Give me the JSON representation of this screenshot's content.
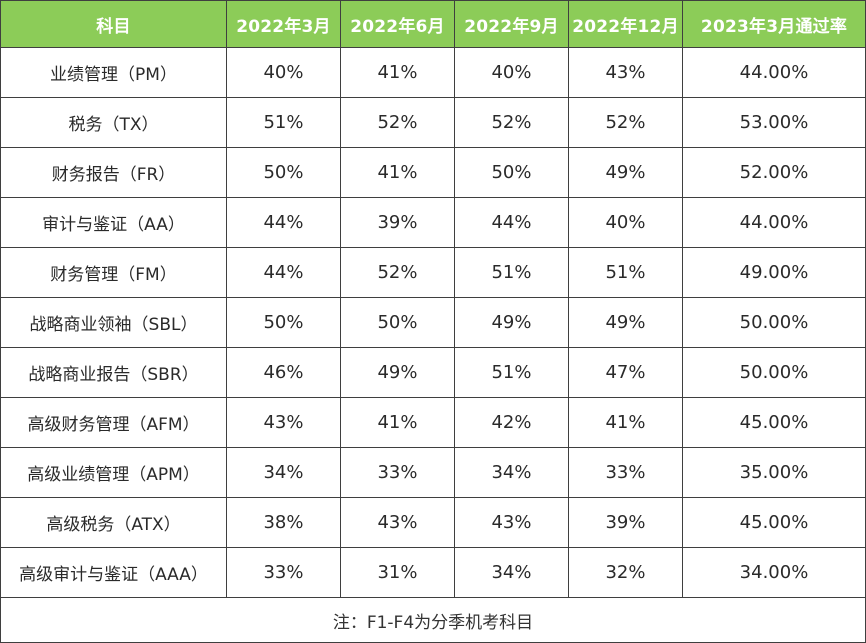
{
  "chart_data": {
    "type": "table",
    "columns": [
      "科目",
      "2022年3月",
      "2022年6月",
      "2022年9月",
      "2022年12月",
      "2023年3月通过率"
    ],
    "rows": [
      {
        "subject": "业绩管理（PM）",
        "values": [
          "40%",
          "41%",
          "40%",
          "43%",
          "44.00%"
        ]
      },
      {
        "subject": "税务（TX）",
        "values": [
          "51%",
          "52%",
          "52%",
          "52%",
          "53.00%"
        ]
      },
      {
        "subject": "财务报告（FR）",
        "values": [
          "50%",
          "41%",
          "50%",
          "49%",
          "52.00%"
        ]
      },
      {
        "subject": "审计与鉴证（AA）",
        "values": [
          "44%",
          "39%",
          "44%",
          "40%",
          "44.00%"
        ]
      },
      {
        "subject": "财务管理（FM）",
        "values": [
          "44%",
          "52%",
          "51%",
          "51%",
          "49.00%"
        ]
      },
      {
        "subject": "战略商业领袖（SBL）",
        "values": [
          "50%",
          "50%",
          "49%",
          "49%",
          "50.00%"
        ]
      },
      {
        "subject": "战略商业报告（SBR）",
        "values": [
          "46%",
          "49%",
          "51%",
          "47%",
          "50.00%"
        ]
      },
      {
        "subject": "高级财务管理（AFM）",
        "values": [
          "43%",
          "41%",
          "42%",
          "41%",
          "45.00%"
        ]
      },
      {
        "subject": "高级业绩管理（APM）",
        "values": [
          "34%",
          "33%",
          "34%",
          "33%",
          "35.00%"
        ]
      },
      {
        "subject": "高级税务（ATX）",
        "values": [
          "38%",
          "43%",
          "43%",
          "39%",
          "45.00%"
        ]
      },
      {
        "subject": "高级审计与鉴证（AAA）",
        "values": [
          "33%",
          "31%",
          "34%",
          "32%",
          "34.00%"
        ]
      }
    ],
    "footnote": "注：F1-F4为分季机考科目"
  },
  "colors": {
    "header_background": "#8ccc58",
    "header_text": "#ffffff",
    "border": "#3f3f3f"
  }
}
